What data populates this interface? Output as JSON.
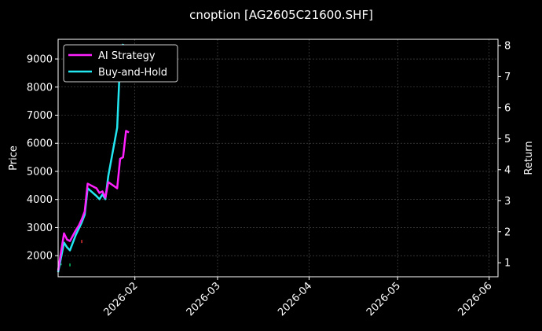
{
  "chart_data": {
    "type": "line",
    "title": "cnoption [AG2605C21600.SHF]",
    "ylabel": "Price",
    "y2label": "Return",
    "ylim": [
      1250,
      9700
    ],
    "y2lim": [
      0.55,
      8.2
    ],
    "yticks": [
      2000,
      3000,
      4000,
      5000,
      6000,
      7000,
      8000,
      9000
    ],
    "y2ticks": [
      1,
      2,
      3,
      4,
      5,
      6,
      7,
      8
    ],
    "xlim": [
      "2026-01-06",
      "2026-06-04"
    ],
    "xticks": [
      "2026-02",
      "2026-03",
      "2026-04",
      "2026-05",
      "2026-06"
    ],
    "xtick_dates": [
      "2026-02-01",
      "2026-03-01",
      "2026-04-01",
      "2026-05-01",
      "2026-06-01"
    ],
    "grid": true,
    "legend": {
      "position": "upper-left"
    },
    "series": [
      {
        "name": "AI Strategy",
        "color": "#ff22ff",
        "axis": "right",
        "dates": [
          "2026-01-06",
          "2026-01-08",
          "2026-01-09",
          "2026-01-10",
          "2026-01-12",
          "2026-01-13",
          "2026-01-14",
          "2026-01-15",
          "2026-01-16",
          "2026-01-19",
          "2026-01-20",
          "2026-01-21",
          "2026-01-22",
          "2026-01-23",
          "2026-01-26",
          "2026-01-27",
          "2026-01-28",
          "2026-01-29",
          "2026-01-30"
        ],
        "values": [
          0.75,
          1.95,
          1.75,
          1.7,
          2.05,
          2.2,
          2.4,
          2.65,
          3.55,
          3.4,
          3.25,
          3.3,
          3.1,
          3.6,
          3.4,
          4.35,
          4.4,
          5.25,
          5.2
        ]
      },
      {
        "name": "Buy-and-Hold",
        "color": "#22e6f0",
        "axis": "right",
        "dates": [
          "2026-01-06",
          "2026-01-08",
          "2026-01-09",
          "2026-01-10",
          "2026-01-12",
          "2026-01-13",
          "2026-01-14",
          "2026-01-15",
          "2026-01-16",
          "2026-01-19",
          "2026-01-20",
          "2026-01-21",
          "2026-01-22",
          "2026-01-23",
          "2026-01-26",
          "2026-01-27",
          "2026-01-28"
        ],
        "values": [
          0.7,
          1.65,
          1.5,
          1.4,
          1.9,
          2.1,
          2.3,
          2.55,
          3.4,
          3.15,
          3.05,
          3.2,
          3.05,
          3.8,
          5.35,
          7.55,
          8.05
        ]
      }
    ],
    "candles": [
      {
        "date": "2026-01-07",
        "low": 1660,
        "high": 1720,
        "color": "#00c060"
      },
      {
        "date": "2026-01-10",
        "low": 1620,
        "high": 1720,
        "color": "#00c060"
      },
      {
        "date": "2026-01-14",
        "low": 2450,
        "high": 2560,
        "color": "#e03030"
      },
      {
        "date": "2026-01-29",
        "low": 9050,
        "high": 9150,
        "color": "#00c060"
      }
    ]
  }
}
